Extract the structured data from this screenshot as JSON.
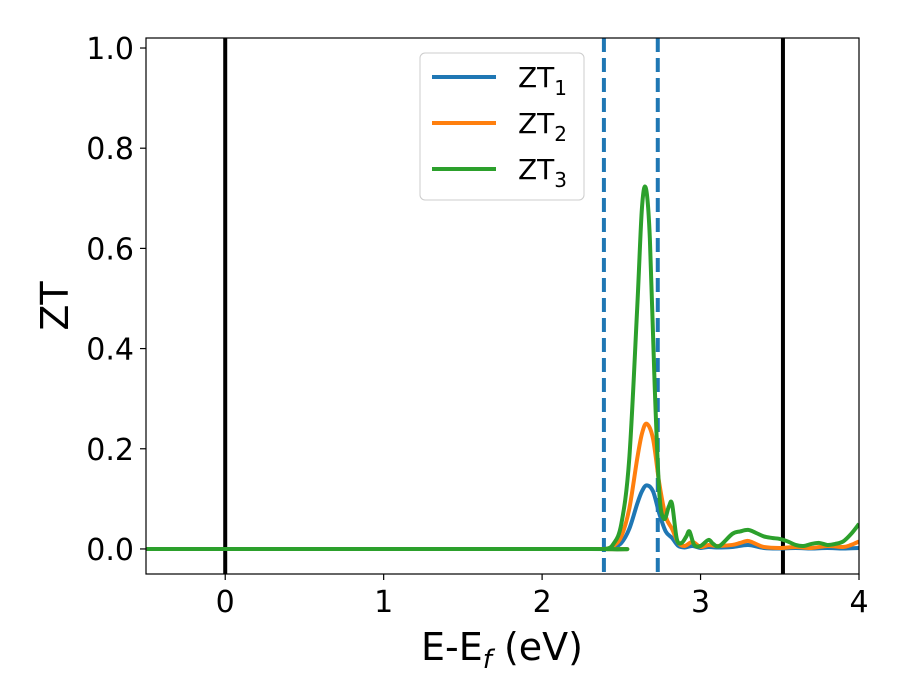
{
  "chart_data": {
    "type": "line",
    "title": "",
    "xlabel": {
      "main": "E-E",
      "sub": "f",
      "suffix": " (eV)"
    },
    "ylabel": "ZT",
    "xlim": [
      -0.5,
      4.0
    ],
    "ylim": [
      -0.05,
      1.02
    ],
    "xticks": [
      0,
      1,
      2,
      3,
      4
    ],
    "xtick_labels": [
      "0",
      "1",
      "2",
      "3",
      "4"
    ],
    "yticks": [
      0.0,
      0.2,
      0.4,
      0.6,
      0.8,
      1.0
    ],
    "ytick_labels": [
      "0.0",
      "0.2",
      "0.4",
      "0.6",
      "0.8",
      "1.0"
    ],
    "grid": false,
    "legend_position": "top-center",
    "vlines_solid": [
      0.0,
      3.52
    ],
    "vlines_dashed": [
      2.39,
      2.73
    ],
    "vline_solid_color": "#000000",
    "vline_dashed_color": "#1f77b4",
    "series": [
      {
        "name": "ZT",
        "name_sub": "1",
        "color": "#1f77b4",
        "x": [
          -0.5,
          2.3,
          2.4,
          2.45,
          2.5,
          2.55,
          2.6,
          2.63,
          2.66,
          2.7,
          2.74,
          2.78,
          2.82,
          2.86,
          2.9,
          2.95,
          3.0,
          3.05,
          3.1,
          3.2,
          3.3,
          3.4,
          3.5,
          3.6,
          3.7,
          3.8,
          3.9,
          4.0
        ],
        "y": [
          0,
          0,
          0.0,
          0.003,
          0.012,
          0.04,
          0.09,
          0.115,
          0.127,
          0.115,
          0.07,
          0.035,
          0.022,
          0.006,
          0.003,
          0.006,
          0.002,
          0.004,
          0.003,
          0.004,
          0.008,
          0.002,
          0.001,
          0.002,
          0.001,
          0.002,
          0.001,
          0.002
        ]
      },
      {
        "name": "ZT",
        "name_sub": "2",
        "color": "#ff7f0e",
        "x": [
          -0.5,
          2.3,
          2.4,
          2.45,
          2.5,
          2.55,
          2.6,
          2.63,
          2.66,
          2.7,
          2.74,
          2.78,
          2.82,
          2.86,
          2.9,
          2.95,
          3.0,
          3.05,
          3.1,
          3.2,
          3.25,
          3.3,
          3.35,
          3.4,
          3.5,
          3.6,
          3.7,
          3.8,
          3.9,
          3.95,
          4.0
        ],
        "y": [
          0,
          0,
          0.0,
          0.006,
          0.025,
          0.08,
          0.18,
          0.23,
          0.25,
          0.22,
          0.13,
          0.065,
          0.04,
          0.012,
          0.006,
          0.014,
          0.004,
          0.008,
          0.006,
          0.008,
          0.012,
          0.016,
          0.01,
          0.004,
          0.002,
          0.004,
          0.002,
          0.006,
          0.004,
          0.008,
          0.015
        ]
      },
      {
        "name": "ZT",
        "name_sub": "3",
        "color": "#2ca02c",
        "x": [
          -0.5,
          2.3,
          2.4,
          2.45,
          2.5,
          2.55,
          2.6,
          2.63,
          2.655,
          2.68,
          2.71,
          2.74,
          2.77,
          2.8,
          2.82,
          2.85,
          2.88,
          2.91,
          2.93,
          2.96,
          3.0,
          3.05,
          3.08,
          3.12,
          3.2,
          3.25,
          3.3,
          3.35,
          3.4,
          3.45,
          3.5,
          3.55,
          3.6,
          3.65,
          3.7,
          3.75,
          3.8,
          3.85,
          3.9,
          3.95,
          4.0
        ],
        "y": [
          0,
          0,
          0.0,
          0.01,
          0.05,
          0.18,
          0.48,
          0.68,
          0.72,
          0.62,
          0.33,
          0.11,
          0.06,
          0.085,
          0.09,
          0.02,
          0.012,
          0.025,
          0.035,
          0.008,
          0.006,
          0.018,
          0.01,
          0.006,
          0.03,
          0.035,
          0.038,
          0.032,
          0.025,
          0.022,
          0.02,
          0.015,
          0.008,
          0.006,
          0.01,
          0.012,
          0.008,
          0.01,
          0.015,
          0.03,
          0.05
        ]
      }
    ]
  }
}
